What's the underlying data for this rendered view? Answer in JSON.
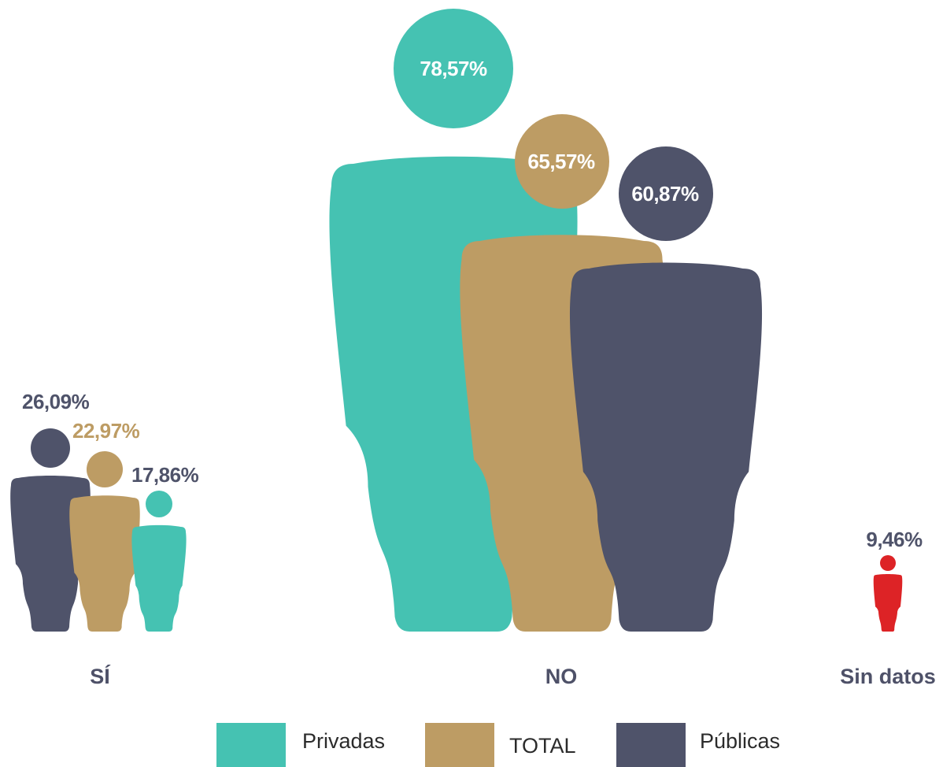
{
  "chart_data": {
    "type": "pictograph",
    "categories": [
      "SÍ",
      "NO",
      "Sin datos"
    ],
    "series": [
      {
        "name": "Privadas",
        "values": [
          "17,86%",
          "78,57%",
          null
        ]
      },
      {
        "name": "TOTAL",
        "values": [
          "22,97%",
          "65,57%",
          "9,46%"
        ]
      },
      {
        "name": "Públicas",
        "values": [
          "26,09%",
          "60,87%",
          null
        ]
      }
    ],
    "numeric": {
      "SÍ": {
        "Privadas": 17.86,
        "TOTAL": 22.97,
        "Públicas": 26.09
      },
      "NO": {
        "Privadas": 78.57,
        "TOTAL": 65.57,
        "Públicas": 60.87
      },
      "Sin datos": {
        "TOTAL": 9.46
      }
    },
    "colors": {
      "Privadas": "#45c2b2",
      "TOTAL": "#bd9c64",
      "Públicas": "#4f536a",
      "Sin datos": "#dd2326"
    },
    "label_colors": {
      "on_figure": "#ffffff",
      "Públicas": "#4f536a",
      "TOTAL": "#bd9c64"
    }
  },
  "legend": [
    {
      "label": "Privadas",
      "color": "#45c2b2"
    },
    {
      "label": "TOTAL",
      "color": "#bd9c64"
    },
    {
      "label": "Públicas",
      "color": "#4f536a"
    }
  ]
}
